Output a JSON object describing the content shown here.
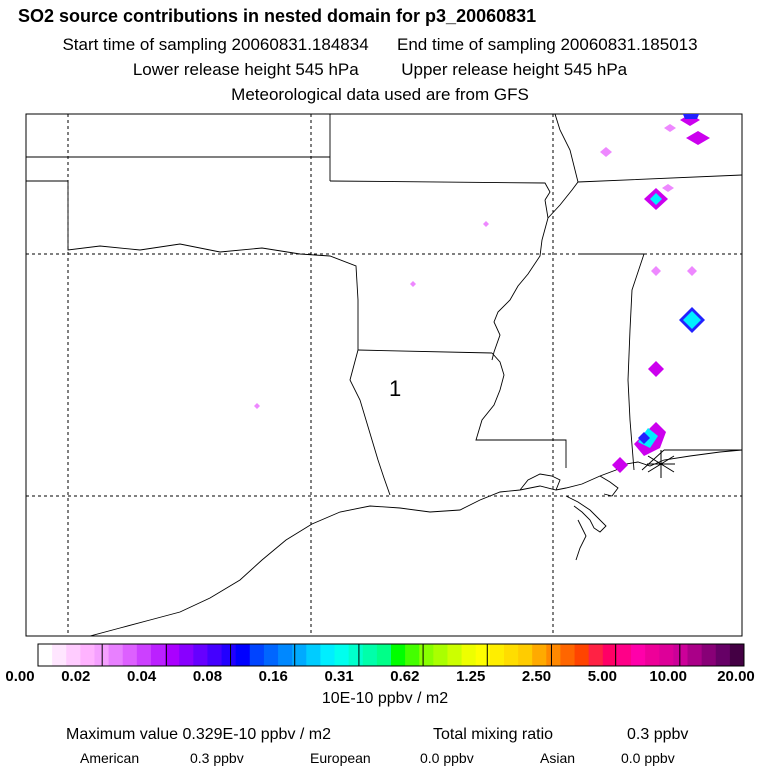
{
  "header": {
    "title": "SO2 source contributions in nested domain for p3_20060831",
    "start_label": "Start time of sampling 20060831.184834",
    "end_label": "End time of sampling 20060831.185013",
    "lower_label": "Lower release height  545 hPa",
    "upper_label": "Upper release height  545 hPa",
    "met_label": "Meteorological data used are from GFS"
  },
  "map": {
    "region_label": "1",
    "plume_colors": {
      "magenta": "#cc00ee",
      "pink": "#ee88ff",
      "cyan": "#00eeff",
      "blue": "#2222ff"
    }
  },
  "colorbar": {
    "ticks": [
      "0.00",
      "0.02",
      "0.04",
      "0.08",
      "0.16",
      "0.31",
      "0.62",
      "1.25",
      "2.50",
      "5.00",
      "10.00",
      "20.00"
    ],
    "colors": [
      "#ffffff",
      "#ffe6ff",
      "#ffccff",
      "#ffb3ff",
      "#f5a0ff",
      "#e880ff",
      "#dd60ff",
      "#cc40ff",
      "#bb20ff",
      "#aa00ff",
      "#8800ff",
      "#6600ff",
      "#4400ff",
      "#2200ff",
      "#0000ff",
      "#0044ff",
      "#0066ff",
      "#0088ff",
      "#00aaff",
      "#00ccff",
      "#00eeff",
      "#00ffee",
      "#00ffcc",
      "#00ffaa",
      "#00ff88",
      "#00ff00",
      "#44ff00",
      "#88ff00",
      "#aaff00",
      "#ccff00",
      "#eeff00",
      "#ffff00",
      "#ffee00",
      "#ffdd00",
      "#ffcc00",
      "#ffaa00",
      "#ff8800",
      "#ff6600",
      "#ff4400",
      "#ff2244",
      "#ff0066",
      "#ff0088",
      "#ff00aa",
      "#ee0099",
      "#dd0099",
      "#cc0099",
      "#aa0088",
      "#880077",
      "#660066",
      "#440044"
    ],
    "unit_label": "10E-10 ppbv / m2"
  },
  "summary": {
    "max_label": "Maximum value  0.329E-10 ppbv / m2",
    "total_label": "Total mixing ratio",
    "total_value": "0.3 ppbv",
    "american_label": "American",
    "american_value": "0.3 ppbv",
    "european_label": "European",
    "european_value": "0.0 ppbv",
    "asian_label": "Asian",
    "asian_value": "0.0 ppbv"
  }
}
